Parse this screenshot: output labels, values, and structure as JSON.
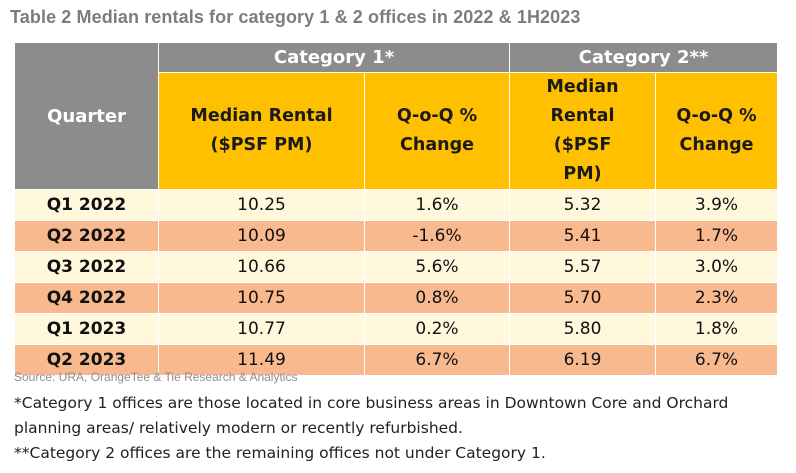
{
  "title": "Table 2 Median rentals for category 1 & 2 offices in 2022 & 1H2023",
  "table": {
    "quarter_header": "Quarter",
    "category1_header": "Category 1*",
    "category2_header": "Category 2**",
    "cat1_col1": "Median Rental ($PSF PM)",
    "cat1_col2": "Q-o-Q % Change",
    "cat2_col1": "Median Rental ($PSF PM)",
    "cat2_col2": "Q-o-Q % Change",
    "rows": [
      {
        "quarter": "Q1 2022",
        "c1_rental": "10.25",
        "c1_change": "1.6%",
        "c2_rental": "5.32",
        "c2_change": "3.9%"
      },
      {
        "quarter": "Q2 2022",
        "c1_rental": "10.09",
        "c1_change": "-1.6%",
        "c2_rental": "5.41",
        "c2_change": "1.7%"
      },
      {
        "quarter": "Q3 2022",
        "c1_rental": "10.66",
        "c1_change": "5.6%",
        "c2_rental": "5.57",
        "c2_change": "3.0%"
      },
      {
        "quarter": "Q4 2022",
        "c1_rental": "10.75",
        "c1_change": "0.8%",
        "c2_rental": "5.70",
        "c2_change": "2.3%"
      },
      {
        "quarter": "Q1 2023",
        "c1_rental": "10.77",
        "c1_change": "0.2%",
        "c2_rental": "5.80",
        "c2_change": "1.8%"
      },
      {
        "quarter": "Q2 2023",
        "c1_rental": "11.49",
        "c1_change": "6.7%",
        "c2_rental": "6.19",
        "c2_change": "6.7%"
      }
    ]
  },
  "source": "Source: URA, OrangeTee & Tie Research & Analytics",
  "note1": "*Category 1 offices are those located in core business areas in Downtown Core and Orchard planning areas/ relatively modern or recently refurbished.",
  "note2": "**Category 2 offices are the remaining offices not under Category 1.",
  "colors": {
    "header_gray": "#8c8c8c",
    "header_orange": "#ffc000",
    "row_light": "#fff8dc",
    "row_peach": "#f8b98f"
  }
}
